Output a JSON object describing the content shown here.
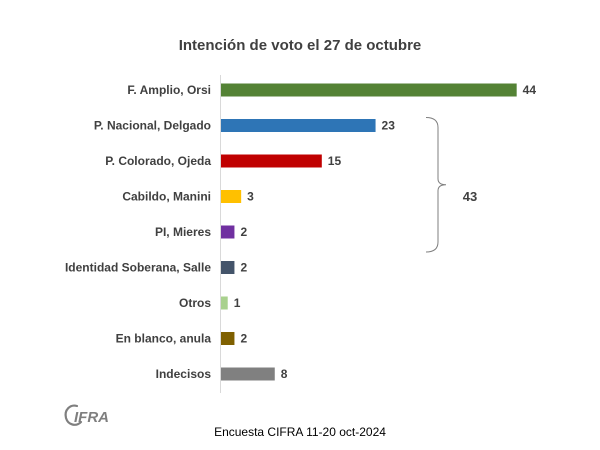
{
  "chart_data": {
    "type": "bar",
    "orientation": "horizontal",
    "title": "Intención de voto el 27 de octubre",
    "categories": [
      "F. Amplio, Orsi",
      "P. Nacional, Delgado",
      "P. Colorado, Ojeda",
      "Cabildo, Manini",
      "PI, Mieres",
      "Identidad Soberana, Salle",
      "Otros",
      "En blanco, anula",
      "Indecisos"
    ],
    "values": [
      44,
      23,
      15,
      3,
      2,
      2,
      1,
      2,
      8
    ],
    "colors": [
      "#548235",
      "#2e75b6",
      "#c00000",
      "#ffc000",
      "#7030a0",
      "#44546a",
      "#a9d18e",
      "#7f6000",
      "#808080"
    ],
    "xlim": [
      0,
      50
    ],
    "grid": false,
    "annotation": {
      "label": "43",
      "bracket_from": "P. Nacional, Delgado",
      "bracket_to": "PI, Mieres"
    }
  },
  "logo": {
    "text": "CIFRA"
  },
  "source_note": "Encuesta CIFRA 11-20 oct-2024"
}
